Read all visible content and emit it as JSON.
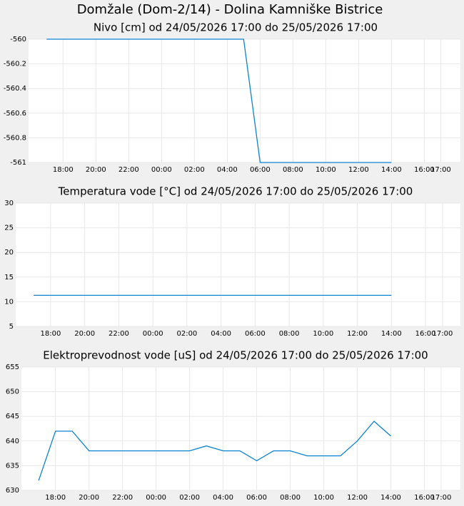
{
  "title": "Domžale (Dom-2/14) - Dolina Kamniške Bistrice",
  "chart_data": [
    {
      "type": "line",
      "title": "Nivo [cm] od 24/05/2026 17:00 do 25/05/2026 17:00",
      "color": "#0a84d0",
      "grid": true,
      "x": [
        0,
        1,
        2,
        3,
        4,
        5,
        6,
        7,
        8,
        9,
        10,
        11,
        12,
        13,
        14,
        15,
        16,
        17,
        18,
        19,
        20,
        21
      ],
      "values": [
        -560,
        -560,
        -560,
        -560,
        -560,
        -560,
        -560,
        -560,
        -560,
        -560,
        -560,
        -560,
        -560,
        -561,
        -561,
        -561,
        -561,
        -561,
        -561,
        -561,
        -561,
        -561
      ],
      "xlim": [
        -1.1,
        25.2
      ],
      "xticks": [
        {
          "value": 1,
          "label": "18:00"
        },
        {
          "value": 3,
          "label": "20:00"
        },
        {
          "value": 5,
          "label": "22:00"
        },
        {
          "value": 7,
          "label": "00:00"
        },
        {
          "value": 9,
          "label": "02:00"
        },
        {
          "value": 11,
          "label": "04:00"
        },
        {
          "value": 13,
          "label": "06:00"
        },
        {
          "value": 15,
          "label": "08:00"
        },
        {
          "value": 17,
          "label": "10:00"
        },
        {
          "value": 19,
          "label": "12:00"
        },
        {
          "value": 21,
          "label": "14:00"
        },
        {
          "value": 23,
          "label": "16:00"
        },
        {
          "value": 24,
          "label": "17:00"
        }
      ],
      "ylim": [
        -561,
        -560
      ],
      "yticks": [
        -560,
        -560.2,
        -560.4,
        -560.6,
        -560.8,
        -561
      ]
    },
    {
      "type": "line",
      "title": "Temperatura vode [°C] od 24/05/2026 17:00 do 25/05/2026 17:00",
      "color": "#0a84d0",
      "grid": true,
      "x": [
        0,
        1,
        2,
        3,
        4,
        5,
        6,
        7,
        8,
        9,
        10,
        11,
        12,
        13,
        14,
        15,
        16,
        17,
        18,
        19,
        20,
        21
      ],
      "values": [
        11.3,
        11.3,
        11.3,
        11.3,
        11.3,
        11.3,
        11.3,
        11.3,
        11.3,
        11.3,
        11.3,
        11.3,
        11.3,
        11.3,
        11.3,
        11.3,
        11.3,
        11.3,
        11.3,
        11.3,
        11.3,
        11.3
      ],
      "xlim": [
        -1.05,
        25.05
      ],
      "xticks": [
        {
          "value": 1,
          "label": "18:00"
        },
        {
          "value": 3,
          "label": "20:00"
        },
        {
          "value": 5,
          "label": "22:00"
        },
        {
          "value": 7,
          "label": "00:00"
        },
        {
          "value": 9,
          "label": "02:00"
        },
        {
          "value": 11,
          "label": "04:00"
        },
        {
          "value": 13,
          "label": "06:00"
        },
        {
          "value": 15,
          "label": "08:00"
        },
        {
          "value": 17,
          "label": "10:00"
        },
        {
          "value": 19,
          "label": "12:00"
        },
        {
          "value": 21,
          "label": "14:00"
        },
        {
          "value": 23,
          "label": "16:00"
        },
        {
          "value": 24,
          "label": "17:00"
        }
      ],
      "ylim": [
        5,
        30
      ],
      "yticks": [
        5,
        10,
        15,
        20,
        25,
        30
      ]
    },
    {
      "type": "line",
      "title": "Elektroprevodnost vode [uS] od 24/05/2026 17:00 do 25/05/2026 17:00",
      "color": "#0a84d0",
      "grid": true,
      "x": [
        0,
        1,
        2,
        3,
        4,
        5,
        6,
        7,
        8,
        9,
        10,
        11,
        12,
        13,
        14,
        15,
        16,
        17,
        18,
        19,
        20,
        21
      ],
      "values": [
        632,
        642,
        642,
        638,
        638,
        638,
        638,
        638,
        638,
        638,
        639,
        638,
        638,
        636,
        638,
        638,
        637,
        637,
        637,
        640,
        644,
        641
      ],
      "xlim": [
        -1.03,
        25.15
      ],
      "xticks": [
        {
          "value": 1,
          "label": "18:00"
        },
        {
          "value": 3,
          "label": "20:00"
        },
        {
          "value": 5,
          "label": "22:00"
        },
        {
          "value": 7,
          "label": "00:00"
        },
        {
          "value": 9,
          "label": "02:00"
        },
        {
          "value": 11,
          "label": "04:00"
        },
        {
          "value": 13,
          "label": "06:00"
        },
        {
          "value": 15,
          "label": "08:00"
        },
        {
          "value": 17,
          "label": "10:00"
        },
        {
          "value": 19,
          "label": "12:00"
        },
        {
          "value": 21,
          "label": "14:00"
        },
        {
          "value": 23,
          "label": "16:00"
        },
        {
          "value": 24,
          "label": "17:00"
        }
      ],
      "ylim": [
        630,
        655
      ],
      "yticks": [
        630,
        635,
        640,
        645,
        650,
        655
      ]
    }
  ]
}
